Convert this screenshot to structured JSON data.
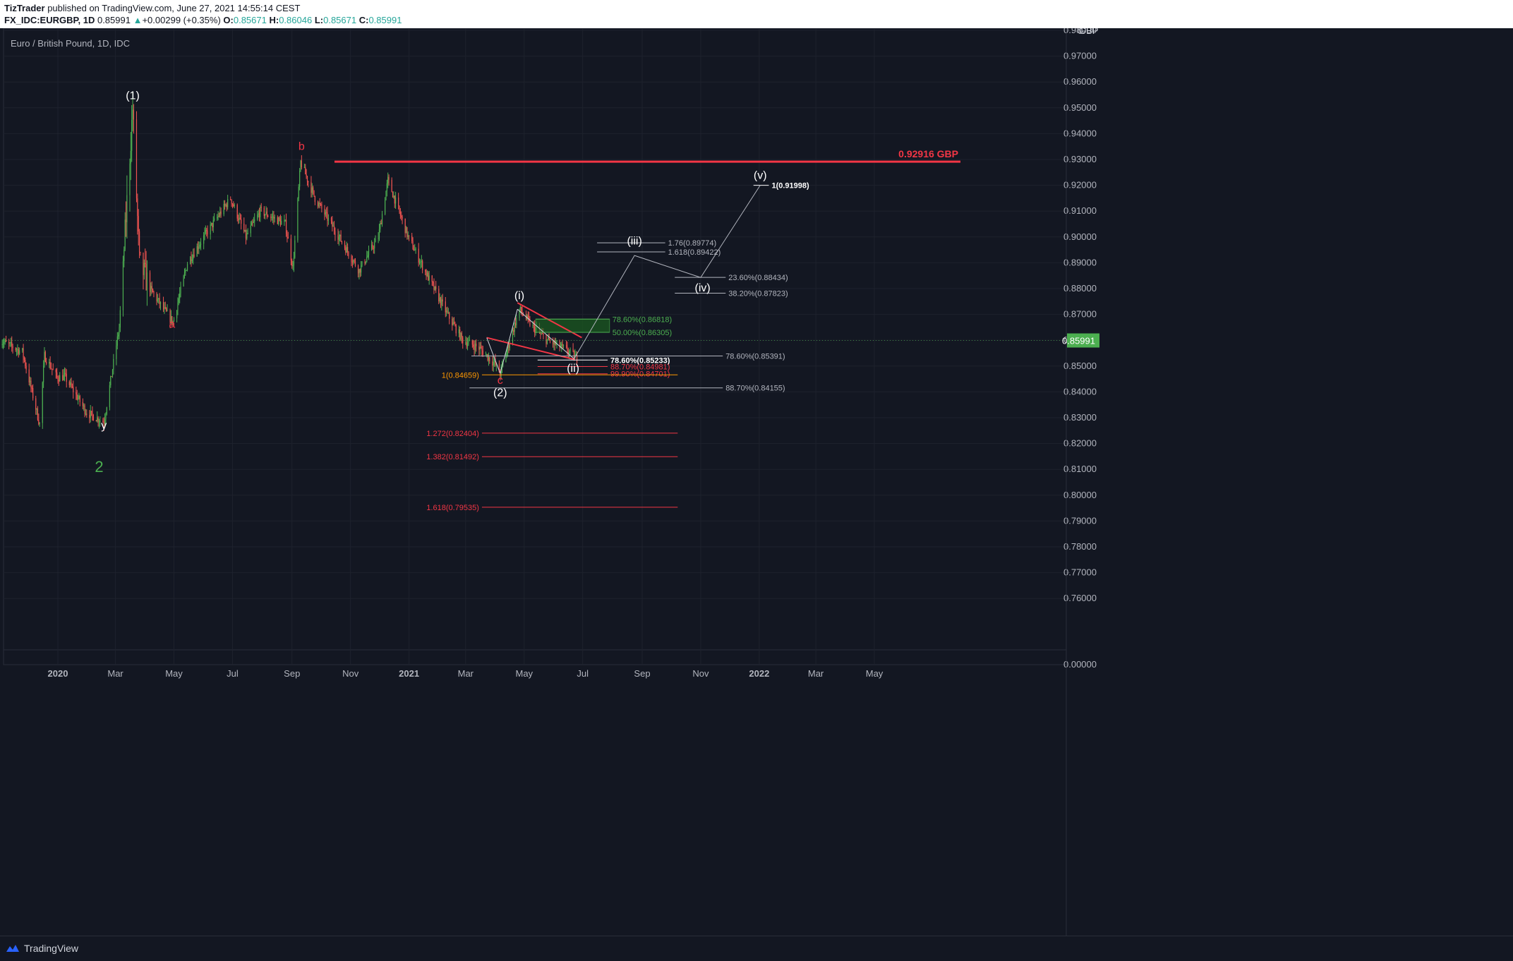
{
  "header": {
    "author": "TizTrader",
    "published": "published on TradingView.com, June 27, 2021 14:55:14 CEST",
    "symbol": "FX_IDC:EURGBP, 1D",
    "last": "0.85991",
    "change": "+0.00299 (+0.35%)",
    "o_label": "O:",
    "o": "0.85671",
    "h_label": "H:",
    "h": "0.86046",
    "l_label": "L:",
    "l": "0.85671",
    "c_label": "C:",
    "c": "0.85991"
  },
  "chart_title": "Euro / British Pound, 1D, IDC",
  "footer": {
    "brand": "TradingView"
  },
  "colors": {
    "background": "#131722",
    "up": "#4caf50",
    "down": "#ef5350",
    "red_line": "#f23645",
    "green_zone": "#1b5e20"
  },
  "chart_data": {
    "type": "candlestick",
    "currency_label": "GBP",
    "ylim": [
      0.7555,
      0.9997
    ],
    "y_ticks": [
      "0.98000",
      "0.97000",
      "0.96000",
      "0.95000",
      "0.94000",
      "0.93000",
      "0.92000",
      "0.91000",
      "0.90000",
      "0.89000",
      "0.88000",
      "0.87000",
      "0.86000",
      "0.85000",
      "0.84000",
      "0.83000",
      "0.82000",
      "0.81000",
      "0.80000",
      "0.79000",
      "0.78000",
      "0.77000",
      "0.76000"
    ],
    "x_ticks": [
      "2020",
      "Mar",
      "May",
      "Jul",
      "Sep",
      "Nov",
      "2021",
      "Mar",
      "May",
      "Jul",
      "Sep",
      "Nov",
      "2022",
      "Mar",
      "May"
    ],
    "last_price_label": "0.85991",
    "price_path": [
      [
        "2019-11-01",
        0.86
      ],
      [
        "2019-11-25",
        0.8555
      ],
      [
        "2019-12-13",
        0.8275
      ],
      [
        "2019-12-18",
        0.854
      ],
      [
        "2019-12-31",
        0.8455
      ],
      [
        "2020-01-08",
        0.846
      ],
      [
        "2020-01-31",
        0.832
      ],
      [
        "2020-02-18",
        0.8283
      ],
      [
        "2020-03-05",
        0.865
      ],
      [
        "2020-03-19",
        0.9499
      ],
      [
        "2020-03-26",
        0.89
      ],
      [
        "2020-04-06",
        0.88
      ],
      [
        "2020-04-20",
        0.872
      ],
      [
        "2020-04-30",
        0.867
      ],
      [
        "2020-05-15",
        0.89
      ],
      [
        "2020-06-01",
        0.9
      ],
      [
        "2020-06-29",
        0.915
      ],
      [
        "2020-07-15",
        0.9
      ],
      [
        "2020-07-30",
        0.91
      ],
      [
        "2020-08-25",
        0.905
      ],
      [
        "2020-09-02",
        0.888
      ],
      [
        "2020-09-10",
        0.929
      ],
      [
        "2020-09-25",
        0.915
      ],
      [
        "2020-10-20",
        0.9
      ],
      [
        "2020-11-10",
        0.887
      ],
      [
        "2020-11-30",
        0.9
      ],
      [
        "2020-12-10",
        0.922
      ],
      [
        "2020-12-31",
        0.9
      ],
      [
        "2021-01-20",
        0.885
      ],
      [
        "2021-02-10",
        0.87
      ],
      [
        "2021-02-26",
        0.86
      ],
      [
        "2021-03-15",
        0.857
      ],
      [
        "2021-03-31",
        0.851
      ],
      [
        "2021-04-06",
        0.8472
      ],
      [
        "2021-04-26",
        0.872
      ],
      [
        "2021-05-10",
        0.865
      ],
      [
        "2021-05-25",
        0.86
      ],
      [
        "2021-06-15",
        0.856
      ],
      [
        "2021-06-25",
        0.853
      ],
      [
        "2021-06-27",
        0.8599
      ]
    ],
    "wave_labels": [
      {
        "text": "(1)",
        "color": "#ffffff",
        "date": "2020-03-19",
        "price": 0.9533
      },
      {
        "text": "a",
        "color": "#f23645",
        "date": "2020-04-29",
        "price": 0.8649
      },
      {
        "text": "b",
        "color": "#f23645",
        "date": "2020-09-11",
        "price": 0.9337
      },
      {
        "text": "y",
        "color": "#ffffff",
        "date": "2020-02-18",
        "price": 0.8256
      },
      {
        "text": "2",
        "color": "#4caf50",
        "date": "2020-02-13",
        "price": 0.809
      },
      {
        "text": "c",
        "color": "#f23645",
        "date": "2021-04-06",
        "price": 0.8431
      },
      {
        "text": "(2)",
        "color": "#ffffff",
        "date": "2021-04-06",
        "price": 0.8384
      },
      {
        "text": "(i)",
        "color": "#ffffff",
        "date": "2021-04-26",
        "price": 0.8759
      },
      {
        "text": "(ii)",
        "color": "#ffffff",
        "date": "2021-06-21",
        "price": 0.8478
      },
      {
        "text": "(iii)",
        "color": "#ffffff",
        "date": "2021-08-24",
        "price": 0.8971
      },
      {
        "text": "(iv)",
        "color": "#ffffff",
        "date": "2021-11-03",
        "price": 0.8789
      },
      {
        "text": "(v)",
        "color": "#ffffff",
        "date": "2022-01-02",
        "price": 0.9225
      }
    ],
    "resistance": {
      "price": 0.92916,
      "label": "0.92916 GBP",
      "color": "#f23645"
    },
    "levels": [
      {
        "label": "1(0.91998)",
        "price": 0.91998,
        "color": "#ffffff",
        "from": "2021-12-26",
        "to": "2022-01-11"
      },
      {
        "label": "1.76(0.89774)",
        "price": 0.89774,
        "color": "#b2b5be",
        "from": "2021-07-16",
        "to": "2021-09-25"
      },
      {
        "label": "1.618(0.89422)",
        "price": 0.89422,
        "color": "#b2b5be",
        "from": "2021-07-16",
        "to": "2021-09-25"
      },
      {
        "label": "23.60%(0.88434)",
        "price": 0.88434,
        "color": "#b2b5be",
        "from": "2021-10-05",
        "to": "2021-11-27"
      },
      {
        "label": "38.20%(0.87823)",
        "price": 0.87823,
        "color": "#b2b5be",
        "from": "2021-10-05",
        "to": "2021-11-27"
      },
      {
        "label": "78.60%(0.86818)",
        "price": 0.86818,
        "color": "#4caf50",
        "from": "2021-05-13",
        "to": "2021-07-29"
      },
      {
        "label": "50.00%(0.86305)",
        "price": 0.86305,
        "color": "#4caf50",
        "from": "2021-05-13",
        "to": "2021-07-29"
      },
      {
        "label": "78.60%(0.85391)",
        "price": 0.85391,
        "color": "#b2b5be",
        "from": "2021-03-07",
        "to": "2021-11-24"
      },
      {
        "label": "78.60%(0.85233)",
        "price": 0.85233,
        "color": "#ffffff",
        "from": "2021-05-15",
        "to": "2021-07-27"
      },
      {
        "label": "88.70%(0.84981)",
        "price": 0.84981,
        "color": "#f23645",
        "from": "2021-05-15",
        "to": "2021-07-27"
      },
      {
        "label": "99.90%(0.84701)",
        "price": 0.84701,
        "color": "#f23645",
        "from": "2021-05-15",
        "to": "2021-07-27"
      },
      {
        "label": "1(0.84659)",
        "price": 0.84659,
        "color": "#ff9800",
        "from": "2021-03-18",
        "to": "2021-10-08"
      },
      {
        "label": "88.70%(0.84155)",
        "price": 0.84155,
        "color": "#b2b5be",
        "from": "2021-03-05",
        "to": "2021-11-24"
      },
      {
        "label": "1.272(0.82404)",
        "price": 0.82404,
        "color": "#f23645",
        "from": "2021-03-18",
        "to": "2021-10-08"
      },
      {
        "label": "1.382(0.81492)",
        "price": 0.81492,
        "color": "#f23645",
        "from": "2021-03-18",
        "to": "2021-10-08"
      },
      {
        "label": "1.618(0.79535)",
        "price": 0.79535,
        "color": "#f23645",
        "from": "2021-03-18",
        "to": "2021-10-08"
      }
    ],
    "projection_path": [
      [
        "2021-06-22",
        0.8528
      ],
      [
        "2021-08-24",
        0.8928
      ],
      [
        "2021-11-01",
        0.8843
      ],
      [
        "2022-01-02",
        0.92
      ]
    ]
  }
}
